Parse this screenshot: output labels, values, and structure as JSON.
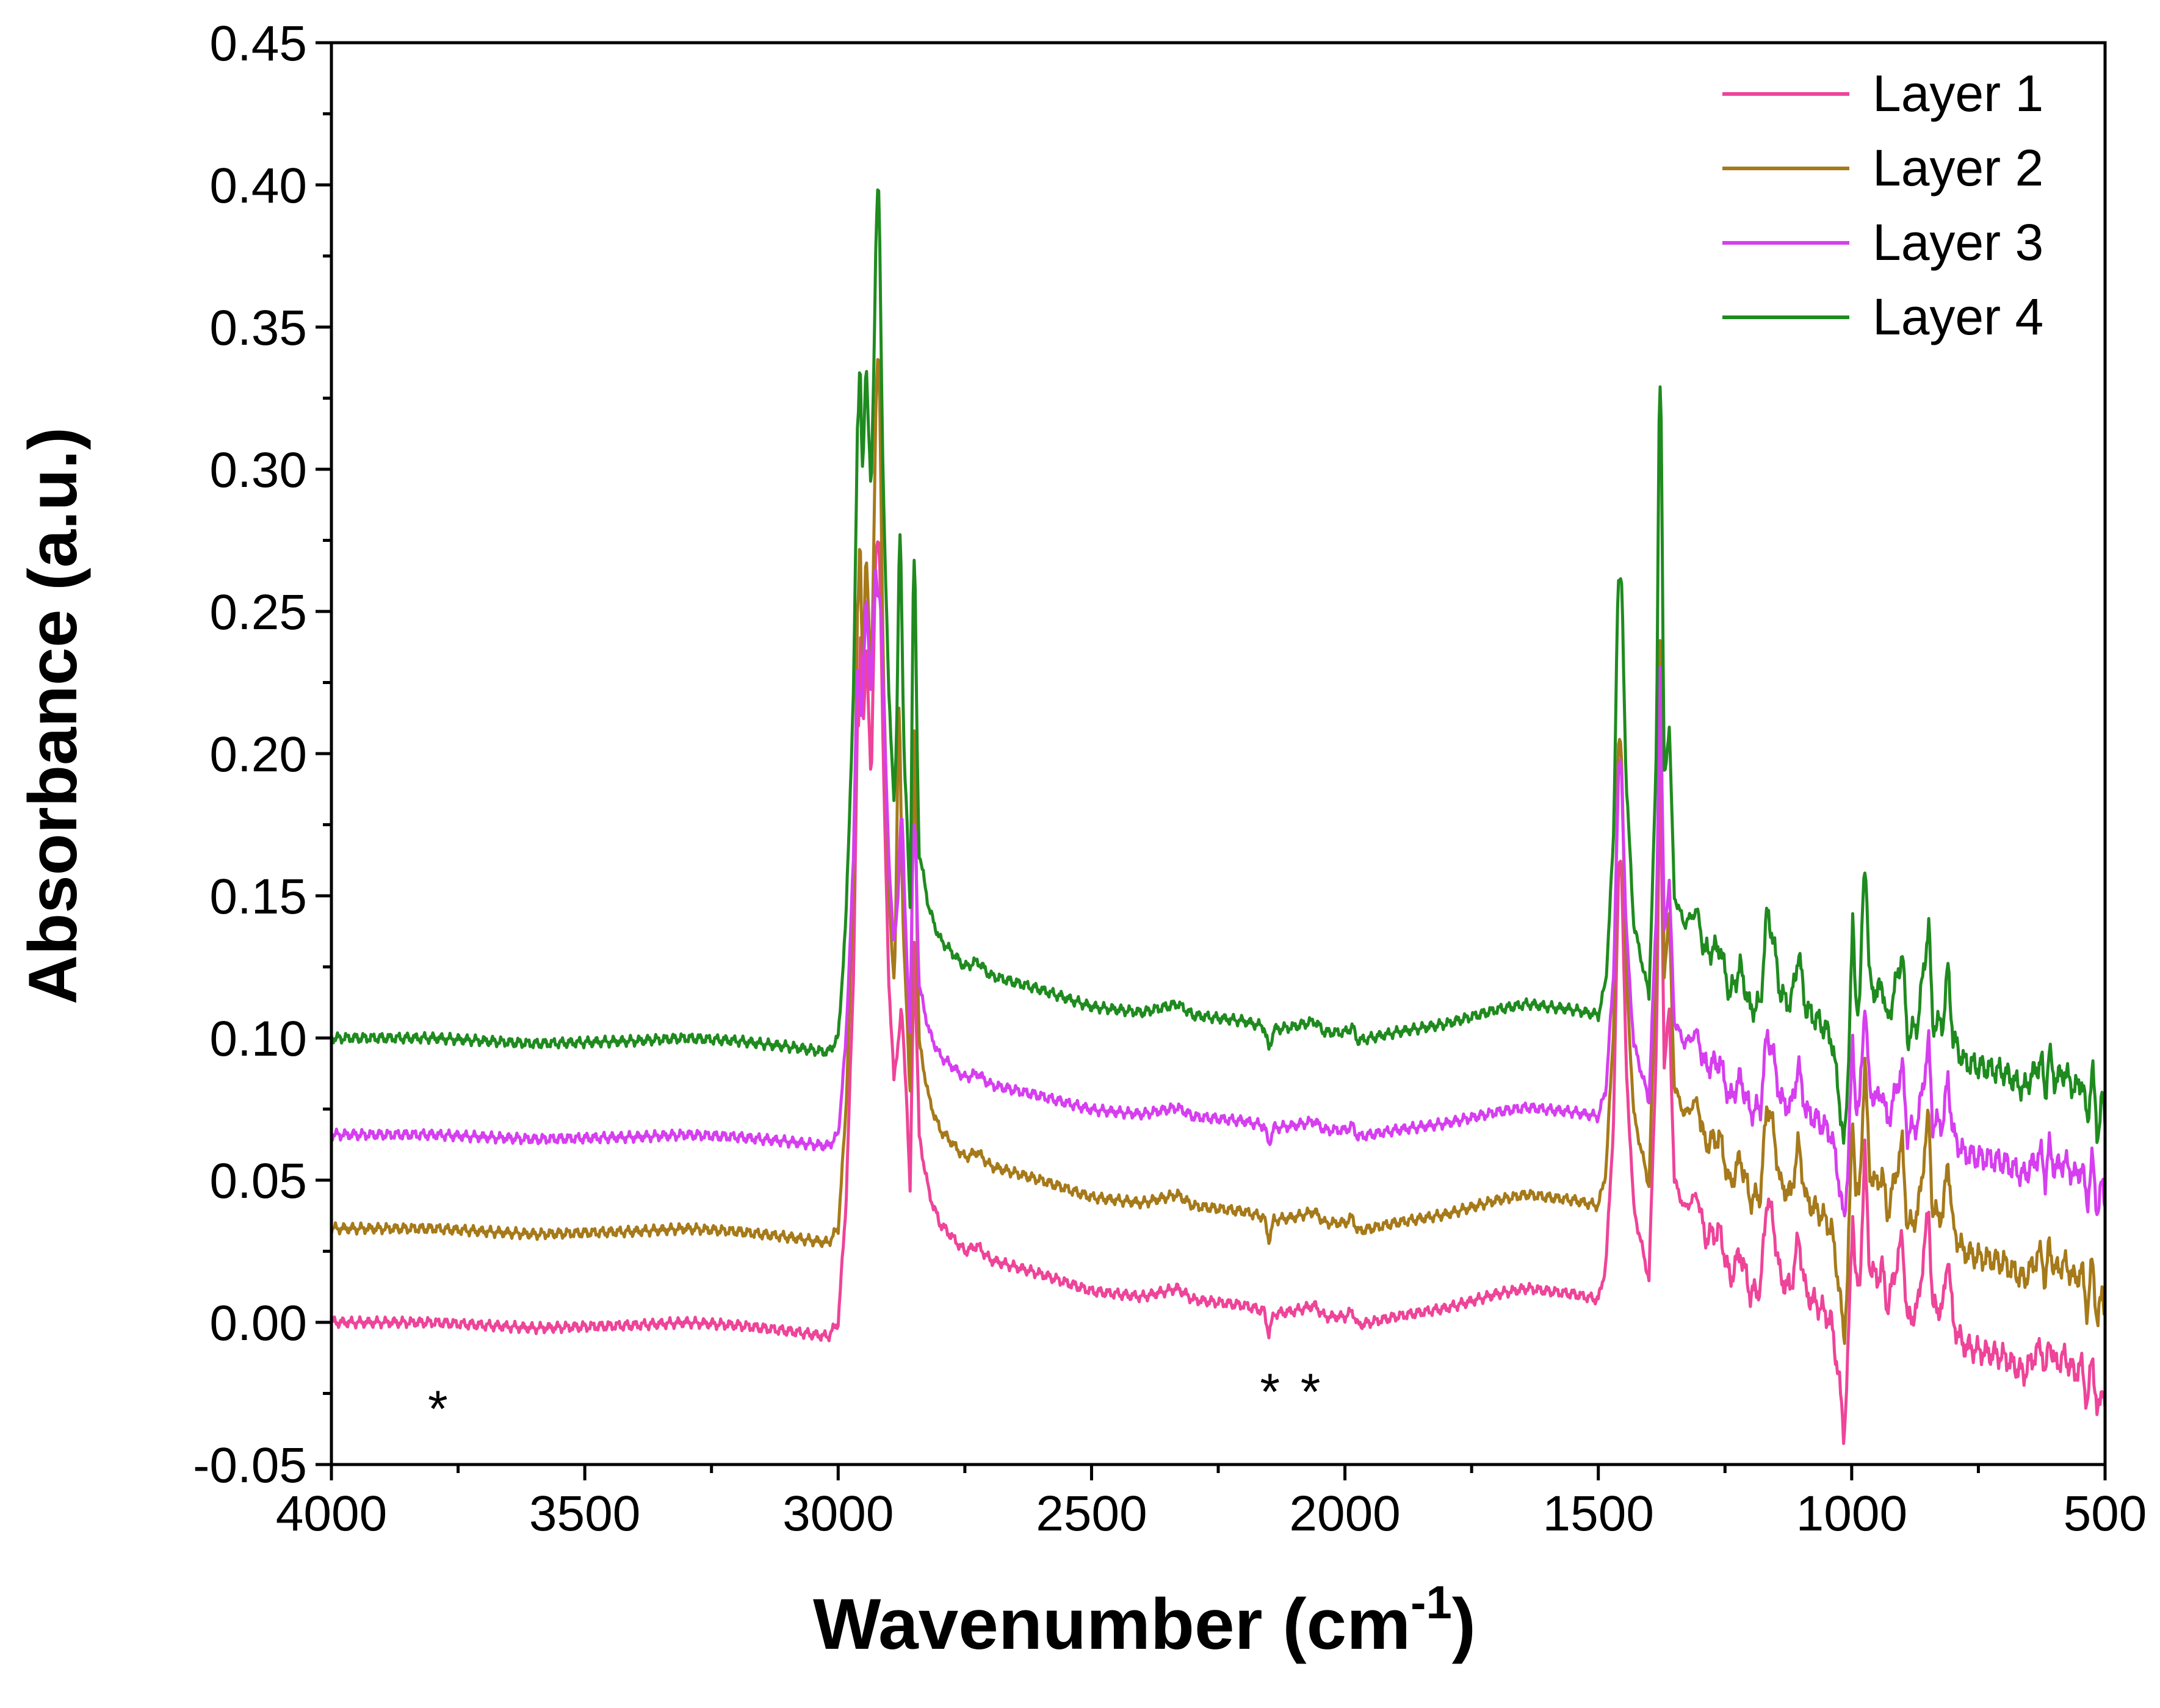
{
  "chart_data": {
    "type": "line",
    "title": "",
    "xlabel": "Wavenumber (cm",
    "xlabel_sup": "-1",
    "xlabel_end": ")",
    "ylabel": "Absorbance (a.u.)",
    "xlim": [
      4000,
      500
    ],
    "ylim": [
      -0.05,
      0.45
    ],
    "x_ticks": [
      4000,
      3500,
      3000,
      2500,
      2000,
      1500,
      1000,
      500
    ],
    "x_tick_labels": [
      "4000",
      "3500",
      "3000",
      "2500",
      "2000",
      "1500",
      "1000",
      "500"
    ],
    "y_ticks": [
      -0.05,
      0,
      0.05,
      0.1,
      0.15,
      0.2,
      0.25,
      0.3,
      0.35,
      0.4,
      0.45
    ],
    "y_tick_labels": [
      "-0.05",
      "0.00",
      "0.05",
      "0.10",
      "0.15",
      "0.20",
      "0.25",
      "0.30",
      "0.35",
      "0.40",
      "0.45"
    ],
    "legend_position": "top-right",
    "annotations": [
      {
        "text": "*",
        "x": 3790,
        "y": -0.028
      },
      {
        "text": "*",
        "x": 2148,
        "y": -0.022
      },
      {
        "text": "*",
        "x": 2068,
        "y": -0.022
      }
    ],
    "base_profile": [
      [
        4000,
        0.0
      ],
      [
        3800,
        0.0
      ],
      [
        3600,
        -0.002
      ],
      [
        3400,
        -0.001
      ],
      [
        3300,
        0.0
      ],
      [
        3200,
        -0.001
      ],
      [
        3100,
        -0.003
      ],
      [
        3020,
        -0.005
      ],
      [
        3000,
        0.0
      ],
      [
        2985,
        0.04
      ],
      [
        2970,
        0.12
      ],
      [
        2962,
        0.21
      ],
      [
        2955,
        0.17
      ],
      [
        2945,
        0.24
      ],
      [
        2935,
        0.19
      ],
      [
        2925,
        0.27
      ],
      [
        2915,
        0.22
      ],
      [
        2900,
        0.12
      ],
      [
        2890,
        0.085
      ],
      [
        2875,
        0.11
      ],
      [
        2865,
        0.08
      ],
      [
        2858,
        0.045
      ],
      [
        2850,
        0.135
      ],
      [
        2840,
        0.065
      ],
      [
        2820,
        0.045
      ],
      [
        2800,
        0.035
      ],
      [
        2750,
        0.025
      ],
      [
        2725,
        0.027
      ],
      [
        2700,
        0.022
      ],
      [
        2600,
        0.017
      ],
      [
        2500,
        0.011
      ],
      [
        2400,
        0.009
      ],
      [
        2330,
        0.012
      ],
      [
        2300,
        0.008
      ],
      [
        2200,
        0.006
      ],
      [
        2160,
        0.004
      ],
      [
        2150,
        -0.004
      ],
      [
        2140,
        0.003
      ],
      [
        2100,
        0.004
      ],
      [
        2060,
        0.006
      ],
      [
        2040,
        0.002
      ],
      [
        2000,
        0.002
      ],
      [
        1985,
        0.004
      ],
      [
        1975,
        -0.001
      ],
      [
        1900,
        0.002
      ],
      [
        1800,
        0.005
      ],
      [
        1700,
        0.01
      ],
      [
        1640,
        0.012
      ],
      [
        1600,
        0.011
      ],
      [
        1550,
        0.01
      ],
      [
        1500,
        0.008
      ],
      [
        1485,
        0.02
      ],
      [
        1470,
        0.07
      ],
      [
        1460,
        0.16
      ],
      [
        1455,
        0.165
      ],
      [
        1445,
        0.09
      ],
      [
        1430,
        0.04
      ],
      [
        1400,
        0.015
      ],
      [
        1385,
        0.1
      ],
      [
        1378,
        0.205
      ],
      [
        1370,
        0.09
      ],
      [
        1360,
        0.11
      ],
      [
        1350,
        0.05
      ],
      [
        1330,
        0.04
      ],
      [
        1305,
        0.045
      ],
      [
        1290,
        0.03
      ],
      [
        1260,
        0.032
      ],
      [
        1240,
        0.015
      ],
      [
        1220,
        0.025
      ],
      [
        1200,
        0.01
      ],
      [
        1180,
        0.012
      ],
      [
        1167,
        0.045
      ],
      [
        1155,
        0.035
      ],
      [
        1140,
        0.015
      ],
      [
        1120,
        0.012
      ],
      [
        1105,
        0.03
      ],
      [
        1090,
        0.01
      ],
      [
        1060,
        0.005
      ],
      [
        1040,
        0.0
      ],
      [
        1025,
        -0.02
      ],
      [
        1015,
        -0.04
      ],
      [
        1008,
        -0.015
      ],
      [
        998,
        0.04
      ],
      [
        992,
        0.015
      ],
      [
        985,
        0.01
      ],
      [
        974,
        0.06
      ],
      [
        965,
        0.02
      ],
      [
        950,
        0.015
      ],
      [
        940,
        0.02
      ],
      [
        930,
        0.005
      ],
      [
        900,
        0.03
      ],
      [
        890,
        0.0
      ],
      [
        870,
        0.005
      ],
      [
        848,
        0.04
      ],
      [
        840,
        0.005
      ],
      [
        820,
        0.005
      ],
      [
        810,
        0.025
      ],
      [
        800,
        0.0
      ],
      [
        780,
        -0.008
      ],
      [
        750,
        -0.01
      ],
      [
        700,
        -0.012
      ],
      [
        660,
        -0.018
      ],
      [
        640,
        -0.012
      ],
      [
        625,
        -0.008
      ],
      [
        618,
        -0.02
      ],
      [
        610,
        -0.005
      ],
      [
        600,
        -0.015
      ],
      [
        580,
        -0.012
      ],
      [
        560,
        -0.018
      ],
      [
        545,
        -0.015
      ],
      [
        535,
        -0.03
      ],
      [
        525,
        -0.01
      ],
      [
        515,
        -0.035
      ],
      [
        505,
        -0.02
      ],
      [
        500,
        -0.03
      ]
    ],
    "series": [
      {
        "name": "Layer 1",
        "color": "#ee4499",
        "offset": 0.0,
        "scale": 1.0,
        "peaks": [
          [
            2921,
            0.275,
            6
          ],
          [
            2955,
            0.245,
            4
          ]
        ]
      },
      {
        "name": "Layer 2",
        "color": "#a67a1a",
        "offset": 0.033,
        "scale": 1.0,
        "peaks": [
          [
            2921,
            0.34,
            6
          ],
          [
            2957,
            0.275,
            4
          ],
          [
            2880,
            0.216,
            5
          ],
          [
            2850,
            0.208,
            4
          ],
          [
            1458,
            0.205,
            5
          ]
        ]
      },
      {
        "name": "Layer 3",
        "color": "#d63ef0",
        "offset": 0.066,
        "scale": 0.8,
        "peaks": [
          [
            2921,
            0.255,
            6
          ],
          [
            2958,
            0.222,
            4
          ],
          [
            2875,
            0.178,
            5
          ],
          [
            2850,
            0.175,
            4
          ]
        ]
      },
      {
        "name": "Layer 4",
        "color": "#1f8b1f",
        "offset": 0.1,
        "scale": 1.0,
        "peaks": [
          [
            2921,
            0.4,
            5
          ],
          [
            2957,
            0.337,
            4
          ],
          [
            2878,
            0.277,
            5
          ],
          [
            2850,
            0.268,
            4
          ],
          [
            1458,
            0.261,
            5
          ],
          [
            1378,
            0.329,
            4
          ],
          [
            974,
            0.158,
            4
          ]
        ]
      }
    ]
  }
}
